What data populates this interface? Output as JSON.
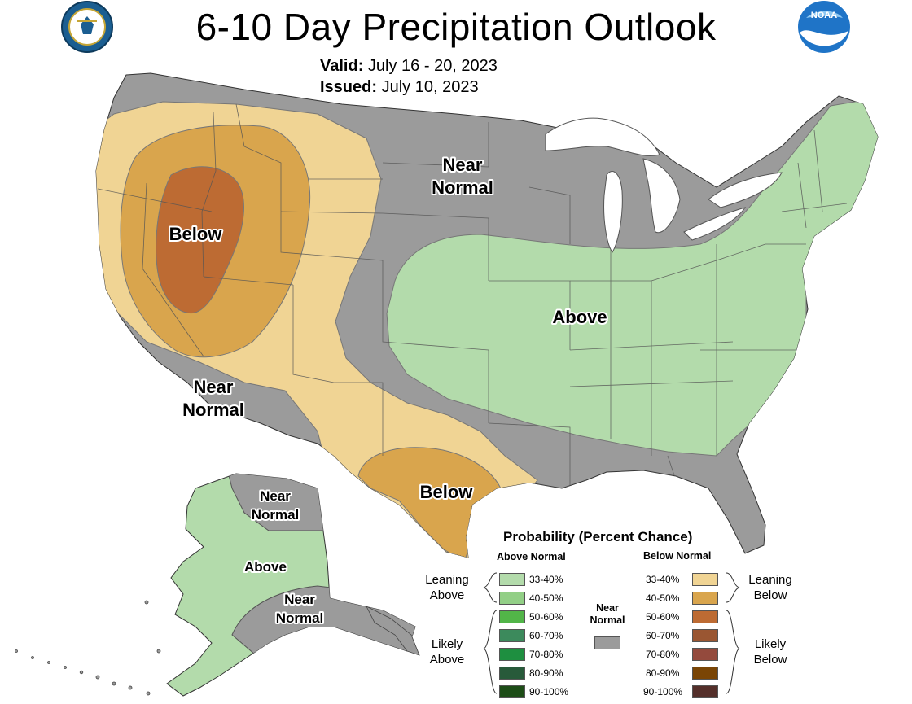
{
  "header": {
    "title": "6-10 Day Precipitation Outlook",
    "valid_label": "Valid:",
    "valid_value": "July 16 - 20, 2023",
    "issued_label": "Issued:",
    "issued_value": "July 10, 2023",
    "left_logo": "department-of-commerce-seal",
    "right_logo": "noaa-logo",
    "noaa_text": "NOAA",
    "seal_text": "DEPARTMENT OF COMMERCE · UNITED STATES OF AMERICA"
  },
  "colors": {
    "near_normal": "#9b9b9b",
    "above_33_40": "#b3dbab",
    "above_40_50": "#92cf86",
    "above_50_60": "#52b548",
    "above_60_70": "#3c8a5c",
    "above_70_80": "#1e8f40",
    "above_80_90": "#285a3a",
    "above_90_100": "#1d4d17",
    "below_33_40": "#f0d494",
    "below_40_50": "#d9a54d",
    "below_50_60": "#bd6b33",
    "below_60_70": "#9a5632",
    "below_70_80": "#944a3d",
    "below_80_90": "#7a4505",
    "below_90_100": "#542f2a",
    "water": "#ffffff"
  },
  "map_labels": {
    "near_normal_north": [
      "Near",
      "Normal"
    ],
    "near_normal_southwest": [
      "Near",
      "Normal"
    ],
    "below_northwest": "Below",
    "below_texas": "Below",
    "above_east": "Above",
    "alaska_near_normal_north": [
      "Near",
      "Normal"
    ],
    "alaska_above": "Above",
    "alaska_near_normal_south": [
      "Near",
      "Normal"
    ]
  },
  "legend": {
    "title": "Probability (Percent Chance)",
    "above_header": "Above Normal",
    "below_header": "Below Normal",
    "near_normal_label": [
      "Near",
      "Normal"
    ],
    "leaning_above": [
      "Leaning",
      "Above"
    ],
    "likely_above": [
      "Likely",
      "Above"
    ],
    "leaning_below": [
      "Leaning",
      "Below"
    ],
    "likely_below": [
      "Likely",
      "Below"
    ],
    "above_bins": [
      "33-40%",
      "40-50%",
      "50-60%",
      "60-70%",
      "70-80%",
      "80-90%",
      "90-100%"
    ],
    "below_bins": [
      "33-40%",
      "40-50%",
      "50-60%",
      "60-70%",
      "70-80%",
      "80-90%",
      "90-100%"
    ]
  }
}
